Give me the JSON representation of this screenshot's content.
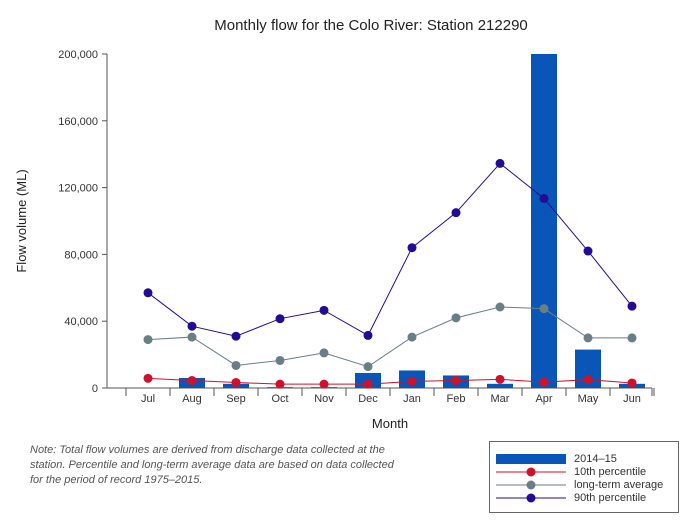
{
  "chart_data": {
    "type": "bar",
    "title": "Monthly flow for the Colo River: Station 212290",
    "xlabel": "Month",
    "ylabel": "Flow volume (ML)",
    "ylim": [
      0,
      200000
    ],
    "yticks": [
      "0",
      "40,000",
      "80,000",
      "120,000",
      "160,000",
      "200,000"
    ],
    "ytick_values": [
      0,
      40000,
      80000,
      120000,
      160000,
      200000
    ],
    "categories": [
      "Jul",
      "Aug",
      "Sep",
      "Oct",
      "Nov",
      "Dec",
      "Jan",
      "Feb",
      "Mar",
      "Apr",
      "May",
      "Jun"
    ],
    "legend_position": "bottom-right",
    "grid": false,
    "series": [
      {
        "name": "2014–15",
        "kind": "bar",
        "color": "#0a56b8",
        "values": [
          0,
          6000,
          2500,
          500,
          500,
          9000,
          10500,
          7500,
          2500,
          200000,
          23000,
          2500
        ]
      },
      {
        "name": "10th percentile",
        "kind": "line",
        "color": "#d0112b",
        "values": [
          5800,
          4500,
          3300,
          2300,
          2300,
          2300,
          4000,
          4500,
          5200,
          3500,
          5000,
          3000
        ]
      },
      {
        "name": "long-term average",
        "kind": "line",
        "color": "#6a7e86",
        "values": [
          29000,
          30500,
          13500,
          16500,
          21000,
          12800,
          30500,
          42000,
          48500,
          47500,
          30000,
          30000
        ]
      },
      {
        "name": "90th percentile",
        "kind": "line",
        "color": "#220c96",
        "values": [
          57000,
          37000,
          31000,
          41500,
          46500,
          31500,
          84000,
          105000,
          134500,
          113500,
          82000,
          49000
        ]
      }
    ]
  },
  "note": "Note: Total flow volumes are derived from discharge data collected at the station. Percentile and long-term average data are based on data collected for the period of record 1975–2015."
}
